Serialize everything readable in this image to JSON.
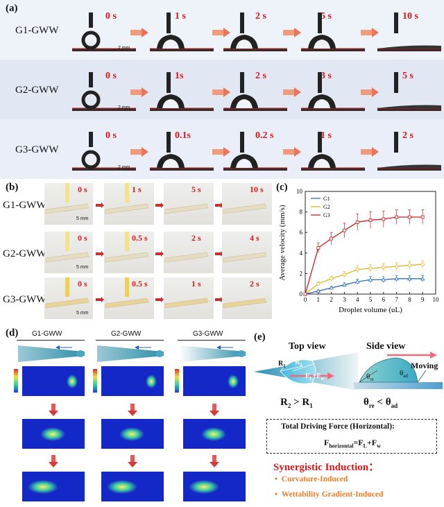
{
  "panel_a": {
    "label": "(a)",
    "rows": [
      {
        "name": "G1-GWW",
        "times": [
          "0 s",
          "1 s",
          "2 s",
          "5 s",
          "10 s"
        ],
        "scale": "2 mm"
      },
      {
        "name": "G2-GWW",
        "times": [
          "0 s",
          "1s",
          "2 s",
          "3 s",
          "5 s"
        ],
        "scale": "2 mm"
      },
      {
        "name": "G3-GWW",
        "times": [
          "0 s",
          "0.1s",
          "0.2 s",
          "1 s",
          "2 s"
        ],
        "scale": "2 mm"
      }
    ]
  },
  "panel_b": {
    "label": "(b)",
    "rows": [
      {
        "name": "G1-GWW",
        "times": [
          "0 s",
          "1 s",
          "5 s",
          "10 s"
        ],
        "scale": "5 mm"
      },
      {
        "name": "G2-GWW",
        "times": [
          "0 s",
          "0.5 s",
          "2 s",
          "4 s"
        ],
        "scale": "5 mm"
      },
      {
        "name": "G3-GWW",
        "times": [
          "0 s",
          "0.5 s",
          "1 s",
          "2 s"
        ],
        "scale": "5 mm"
      }
    ]
  },
  "panel_c": {
    "label": "(c)",
    "chart_data": {
      "type": "line",
      "xlabel": "Droplet volume (uL)",
      "ylabel": "Average velocity (mm/s)",
      "xlim": [
        0,
        10
      ],
      "ylim": [
        0,
        10
      ],
      "xticks": [
        "0",
        "1",
        "2",
        "3",
        "4",
        "5",
        "6",
        "7",
        "8",
        "9",
        "10"
      ],
      "yticks": [
        "0",
        "2",
        "4",
        "6",
        "8",
        "10"
      ],
      "legend_position": "top-left",
      "x": [
        0,
        1,
        2,
        3,
        4,
        5,
        6,
        7,
        8,
        9
      ],
      "series": [
        {
          "name": "G1",
          "color": "#2e6fb0",
          "marker": "triangle",
          "values": [
            0,
            0.3,
            0.6,
            0.9,
            1.2,
            1.4,
            1.4,
            1.5,
            1.5,
            1.5
          ],
          "errors": [
            0,
            0.1,
            0.15,
            0.2,
            0.25,
            0.3,
            0.3,
            0.3,
            0.3,
            0.3
          ]
        },
        {
          "name": "G2",
          "color": "#e6b422",
          "marker": "circle",
          "values": [
            0,
            1.0,
            1.5,
            1.9,
            2.4,
            2.5,
            2.6,
            2.7,
            2.8,
            2.9
          ],
          "errors": [
            0,
            0.2,
            0.25,
            0.3,
            0.35,
            0.35,
            0.35,
            0.35,
            0.35,
            0.35
          ]
        },
        {
          "name": "G3",
          "color": "#c81e1e",
          "marker": "square",
          "values": [
            0,
            4.5,
            5.4,
            6.2,
            7.0,
            7.2,
            7.3,
            7.5,
            7.5,
            7.5
          ],
          "errors": [
            0,
            0.5,
            0.6,
            0.7,
            0.8,
            0.8,
            0.8,
            0.7,
            0.7,
            0.7
          ]
        }
      ]
    }
  },
  "panel_d": {
    "label": "(d)",
    "columns": [
      "G1-GWW",
      "G2-GWW",
      "G3-GWW"
    ]
  },
  "panel_e": {
    "label": "(e)",
    "top_view": "Top view",
    "side_view": "Side view",
    "moving": "Moving",
    "r1": "R",
    "r1_sub": "1",
    "r2": "R",
    "r2_sub": "2",
    "force_label": "F",
    "force_sub1": "L",
    "force_plus": "+F",
    "force_sub2": "w",
    "theta_re": "θ",
    "theta_re_sub": "re",
    "theta_ad": "θ",
    "theta_ad_sub": "ad",
    "relation_r_left": "R",
    "relation_r_left_sub": "2",
    "relation_r_op": " > R",
    "relation_r_right_sub": "1",
    "relation_t_left": "θ",
    "relation_t_left_sub": "re",
    "relation_t_op": " < θ",
    "relation_t_right_sub": "ad",
    "box_title": "Total Driving Force (Horizontal):",
    "box_eq_f": "F",
    "box_eq_sub": "horizontal",
    "box_eq_mid": "=F",
    "box_eq_l": "L",
    "box_eq_plus": "+F",
    "box_eq_w": "w",
    "synergy_title": "Synergistic Induction：",
    "items": [
      "Curvature-Induced",
      "Wettability Gradient-Induced"
    ],
    "bullet": "•"
  },
  "colors": {
    "accent_red": "#d81818",
    "band_blue": "#e3eaf6",
    "item_orange": "#e87d2a"
  }
}
